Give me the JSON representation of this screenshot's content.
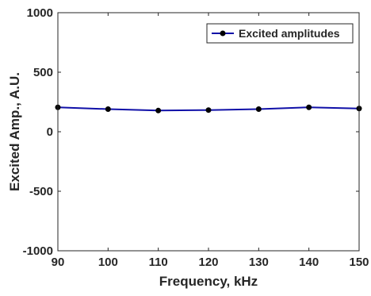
{
  "chart_data": {
    "type": "line",
    "xlabel": "Frequency, kHz",
    "ylabel": "Excited Amp., A.U.",
    "xlim": [
      90,
      150
    ],
    "ylim": [
      -1000,
      1000
    ],
    "xticks": [
      90,
      100,
      110,
      120,
      130,
      140,
      150
    ],
    "yticks": [
      -1000,
      -500,
      0,
      500,
      1000
    ],
    "grid": false,
    "legend_position": "top-right",
    "series": [
      {
        "name": "Excited amplitudes",
        "color": "#1010a8",
        "marker": "circle",
        "x": [
          90,
          100,
          110,
          120,
          130,
          140,
          150
        ],
        "y": [
          205,
          190,
          178,
          182,
          190,
          205,
          195
        ]
      }
    ]
  }
}
